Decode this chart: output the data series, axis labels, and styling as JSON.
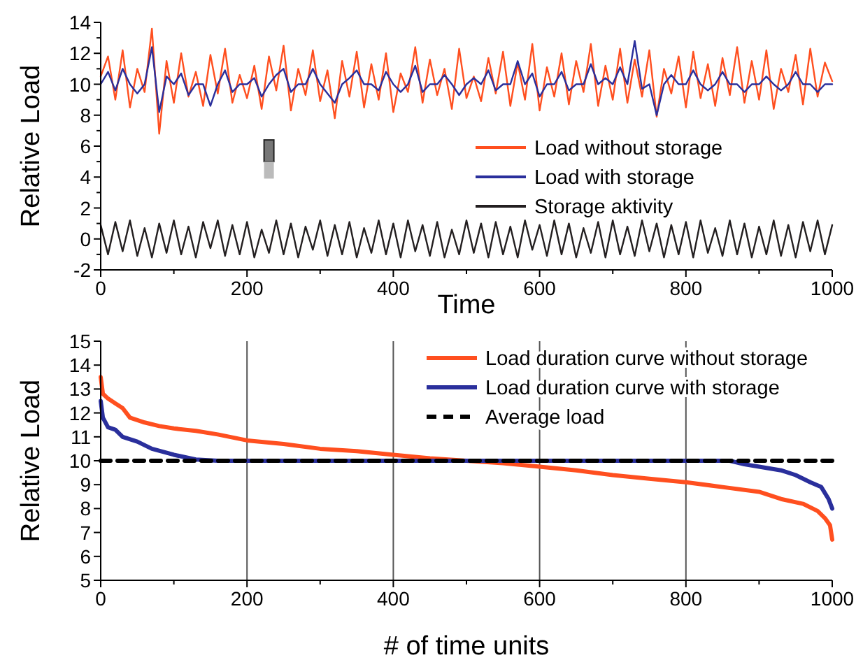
{
  "chart_data": [
    {
      "type": "line",
      "xlabel": "Time",
      "ylabel": "Relative Load",
      "xlim": [
        0,
        1000
      ],
      "ylim": [
        -2,
        14
      ],
      "xticks": [
        0,
        {
          "value": 100,
          "label": null
        },
        200,
        {
          "value": 300,
          "label": null
        },
        400,
        {
          "value": 500,
          "label": null
        },
        600,
        {
          "value": 700,
          "label": null
        },
        800,
        {
          "value": 900,
          "label": null
        },
        1000
      ],
      "yticks": [
        -2,
        {
          "value": -1,
          "label": null
        },
        0,
        {
          "value": 1,
          "label": null
        },
        2,
        {
          "value": 3,
          "label": null
        },
        4,
        {
          "value": 5,
          "label": null
        },
        6,
        {
          "value": 7,
          "label": null
        },
        8,
        {
          "value": 9,
          "label": null
        },
        10,
        {
          "value": 11,
          "label": null
        },
        12,
        {
          "value": 13,
          "label": null
        },
        14
      ],
      "x": [
        0,
        10,
        20,
        30,
        40,
        50,
        60,
        70,
        80,
        90,
        100,
        110,
        120,
        130,
        140,
        150,
        160,
        170,
        180,
        190,
        200,
        210,
        220,
        230,
        240,
        250,
        260,
        270,
        280,
        290,
        300,
        310,
        320,
        330,
        340,
        350,
        360,
        370,
        380,
        390,
        400,
        410,
        420,
        430,
        440,
        450,
        460,
        470,
        480,
        490,
        500,
        510,
        520,
        530,
        540,
        550,
        560,
        570,
        580,
        590,
        600,
        610,
        620,
        630,
        640,
        650,
        660,
        670,
        680,
        690,
        700,
        710,
        720,
        730,
        740,
        750,
        760,
        770,
        780,
        790,
        800,
        810,
        820,
        830,
        840,
        850,
        860,
        870,
        880,
        890,
        900,
        910,
        920,
        930,
        940,
        950,
        960,
        970,
        980,
        990,
        1000
      ],
      "grid": false,
      "legend": "right",
      "marker": "none",
      "line_style": "solid",
      "series": [
        {
          "name": "Load without storage",
          "color": "#ff4f1f",
          "values": [
            10.5,
            11.8,
            9,
            12.2,
            8.5,
            11,
            9.5,
            13.6,
            6.8,
            11.5,
            8.8,
            12,
            9.2,
            10.8,
            8.6,
            11.9,
            9.4,
            12.3,
            8.8,
            10.6,
            9.1,
            11.2,
            8.4,
            11.8,
            9.6,
            12.5,
            8.3,
            11,
            9.3,
            12.2,
            8.9,
            10.9,
            7.8,
            11.5,
            9.2,
            12.1,
            8.5,
            11.3,
            9,
            12,
            8.2,
            10.7,
            9.5,
            12.4,
            8.8,
            11.6,
            9.3,
            11,
            8.4,
            12.3,
            9.1,
            10.5,
            8.9,
            11.7,
            9.4,
            12.1,
            8.6,
            11.4,
            9,
            12.6,
            8.3,
            11.1,
            9.2,
            12,
            8.7,
            11.5,
            9.5,
            12.6,
            8.6,
            11.2,
            9,
            12.3,
            8.8,
            11.6,
            9.2,
            12.2,
            7.9,
            11,
            9.4,
            11.8,
            8.5,
            12.1,
            9.1,
            11.3,
            8.6,
            11.7,
            9.3,
            12.4,
            8.8,
            11.5,
            9,
            12.2,
            8.4,
            11,
            9.5,
            11.9,
            8.7,
            12.3,
            9.2,
            11.4,
            10.2
          ]
        },
        {
          "name": "Load with storage",
          "color": "#2a2f9c",
          "values": [
            10,
            10.8,
            9.6,
            11,
            10,
            9.4,
            10,
            12.4,
            8.2,
            10.5,
            10,
            10.7,
            9.3,
            10,
            10,
            8.6,
            10,
            10.9,
            9.5,
            10,
            10,
            10.4,
            9.2,
            10,
            10.6,
            11,
            9.5,
            10,
            10,
            11,
            10,
            9.4,
            8.8,
            10,
            10.4,
            10.9,
            10,
            10,
            9.6,
            10.8,
            10,
            9.5,
            10,
            11.2,
            9.5,
            10,
            10,
            10.6,
            10,
            9.3,
            10,
            10.4,
            10,
            10.9,
            9.6,
            10,
            10,
            11.5,
            10,
            10.7,
            9.2,
            10,
            10,
            10.8,
            9.6,
            10,
            10,
            11.3,
            10,
            10.4,
            10,
            11.1,
            10,
            12.8,
            9.7,
            10,
            8,
            10,
            10.6,
            10,
            10,
            10.9,
            10,
            9.6,
            10,
            10.8,
            10,
            10,
            9.5,
            10,
            10,
            10.5,
            10,
            9.6,
            10,
            10.8,
            10,
            10,
            9.5,
            10,
            10
          ]
        },
        {
          "name": "Storage aktivity",
          "color": "#231f20",
          "values": [
            0.9,
            -1,
            1.1,
            -0.8,
            1.2,
            -1.1,
            0.7,
            -1.2,
            1,
            -0.9,
            1.2,
            -1,
            0.8,
            -1.2,
            1.1,
            -0.6,
            1.2,
            -1.1,
            0.9,
            -1,
            1.1,
            -1.2,
            0.6,
            -0.9,
            1.2,
            -1,
            1,
            -1.2,
            0.8,
            -0.7,
            1.2,
            -1.1,
            0.9,
            -1,
            1.1,
            -1.2,
            0.7,
            -0.9,
            1.2,
            -1,
            1,
            -1.2,
            1.2,
            -0.8,
            0.9,
            -1.1,
            1.1,
            -1.2,
            0.6,
            -1,
            1.2,
            -0.9,
            1,
            -1.2,
            1.1,
            -1,
            0.8,
            -1.2,
            1.2,
            -0.7,
            0.9,
            -1.1,
            1.2,
            -1,
            1,
            -1.2,
            0.7,
            -0.9,
            1.1,
            -1.2,
            1.2,
            -1,
            0.8,
            -1.1,
            1.2,
            -0.8,
            1,
            -1.2,
            0.9,
            -1,
            1.1,
            -1.2,
            1.2,
            -0.9,
            0.7,
            -1.1,
            1.2,
            -1,
            1,
            -1.2,
            0.8,
            -1,
            1.2,
            -1.1,
            0.9,
            -1.2,
            1.1,
            -0.8,
            1.2,
            -1,
            0.9
          ]
        }
      ]
    },
    {
      "type": "line",
      "xlabel": "# of time units",
      "ylabel": "Relative Load",
      "xlim": [
        0,
        1000
      ],
      "ylim": [
        5,
        15
      ],
      "xticks": [
        0,
        {
          "value": 100,
          "label": null
        },
        200,
        {
          "value": 300,
          "label": null
        },
        400,
        {
          "value": 500,
          "label": null
        },
        600,
        {
          "value": 700,
          "label": null
        },
        800,
        {
          "value": 900,
          "label": null
        },
        1000
      ],
      "yticks": [
        5,
        6,
        7,
        8,
        9,
        10,
        11,
        12,
        13,
        14,
        15
      ],
      "grid": "x",
      "legend": "top right",
      "marker": "none",
      "series": [
        {
          "name": "Load duration curve without storage",
          "color": "#ff4f1f",
          "line_style": "solid",
          "x": [
            0,
            3,
            10,
            20,
            30,
            40,
            60,
            80,
            100,
            130,
            160,
            200,
            250,
            300,
            350,
            400,
            450,
            500,
            550,
            600,
            650,
            700,
            750,
            800,
            850,
            900,
            930,
            960,
            980,
            990,
            997,
            1000
          ],
          "values": [
            13.5,
            12.8,
            12.6,
            12.4,
            12.2,
            11.8,
            11.6,
            11.45,
            11.35,
            11.25,
            11.1,
            10.85,
            10.7,
            10.5,
            10.4,
            10.25,
            10.1,
            10,
            9.9,
            9.75,
            9.6,
            9.4,
            9.25,
            9.1,
            8.9,
            8.7,
            8.4,
            8.2,
            7.9,
            7.6,
            7.3,
            6.7
          ]
        },
        {
          "name": "Load duration curve with storage",
          "color": "#2a2f9c",
          "line_style": "solid",
          "x": [
            0,
            3,
            10,
            20,
            30,
            50,
            70,
            100,
            130,
            160,
            860,
            880,
            900,
            930,
            950,
            970,
            985,
            995,
            1000
          ],
          "values": [
            12.5,
            11.8,
            11.4,
            11.3,
            11,
            10.8,
            10.5,
            10.25,
            10.05,
            10,
            10,
            9.85,
            9.75,
            9.6,
            9.4,
            9.1,
            8.9,
            8.4,
            8
          ]
        },
        {
          "name": "Average load",
          "color": "#000000",
          "line_style": "dashed",
          "x": [
            0,
            1000
          ],
          "values": [
            10,
            10
          ]
        }
      ]
    }
  ]
}
